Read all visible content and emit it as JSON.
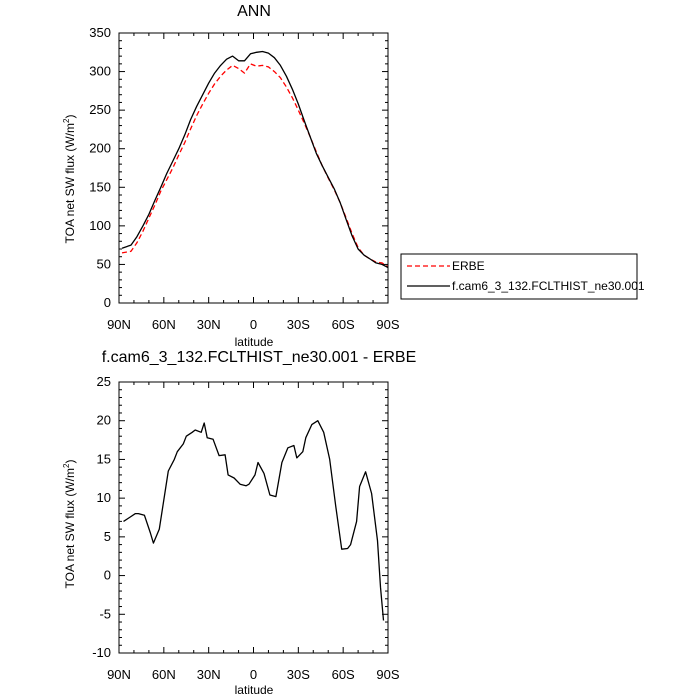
{
  "chart_data": [
    {
      "type": "line",
      "title": "ANN",
      "xlabel": "latitude",
      "ylabel": "TOA net SW flux (W/m",
      "ylabel_sup": "2",
      "ylabel_close": ")",
      "xlim": [
        90,
        -90
      ],
      "ylim": [
        0,
        350
      ],
      "xticks": [
        90,
        60,
        30,
        0,
        -30,
        -60,
        -90
      ],
      "xtick_labels": [
        "90N",
        "60N",
        "30N",
        "0",
        "30S",
        "60S",
        "90S"
      ],
      "yticks": [
        0,
        50,
        100,
        150,
        200,
        250,
        300,
        350
      ],
      "ytick_labels": [
        "0",
        "50",
        "100",
        "150",
        "200",
        "250",
        "300",
        "350"
      ],
      "series": [
        {
          "name": "ERBE",
          "color": "#ff0000",
          "dashed": true,
          "x": [
            88,
            82,
            78,
            74,
            70,
            66,
            62,
            58,
            54,
            50,
            46,
            42,
            38,
            34,
            30,
            26,
            22,
            18,
            14,
            10,
            6,
            2,
            -2,
            -6,
            -10,
            -14,
            -18,
            -22,
            -26,
            -30,
            -34,
            -38,
            -42,
            -46,
            -50,
            -54,
            -58,
            -62,
            -66,
            -70,
            -74,
            -78,
            -82,
            -86,
            -90
          ],
          "values": [
            65,
            67,
            78,
            93,
            110,
            127,
            145,
            160,
            175,
            192,
            208,
            226,
            243,
            258,
            272,
            284,
            294,
            302,
            308,
            304,
            298,
            310,
            307,
            308,
            306,
            300,
            292,
            280,
            266,
            250,
            233,
            215,
            196,
            178,
            162,
            147,
            130,
            110,
            90,
            72,
            62,
            57,
            53,
            52,
            47
          ]
        },
        {
          "name": "f.cam6_3_132.FCLTHIST_ne30.001",
          "color": "#000000",
          "dashed": false,
          "x": [
            88,
            82,
            78,
            74,
            70,
            66,
            62,
            58,
            54,
            50,
            46,
            42,
            38,
            34,
            30,
            26,
            22,
            18,
            14,
            10,
            6,
            2,
            -2,
            -6,
            -10,
            -14,
            -18,
            -22,
            -26,
            -30,
            -34,
            -38,
            -42,
            -46,
            -50,
            -54,
            -58,
            -62,
            -66,
            -70,
            -74,
            -78,
            -82,
            -86,
            -90
          ],
          "values": [
            71,
            75,
            86,
            100,
            115,
            133,
            150,
            168,
            184,
            200,
            218,
            238,
            255,
            270,
            285,
            298,
            308,
            316,
            320,
            314,
            314,
            323,
            325,
            326,
            324,
            318,
            308,
            294,
            277,
            258,
            236,
            215,
            194,
            178,
            163,
            148,
            130,
            108,
            87,
            70,
            62,
            57,
            52,
            50,
            46
          ]
        }
      ]
    },
    {
      "type": "line",
      "title": "f.cam6_3_132.FCLTHIST_ne30.001 - ERBE",
      "xlabel": "latitude",
      "ylabel": "TOA net SW flux (W/m",
      "ylabel_sup": "2",
      "ylabel_close": ")",
      "xlim": [
        90,
        -90
      ],
      "ylim": [
        -10,
        25
      ],
      "xticks": [
        90,
        60,
        30,
        0,
        -30,
        -60,
        -90
      ],
      "xtick_labels": [
        "90N",
        "60N",
        "30N",
        "0",
        "30S",
        "60S",
        "90S"
      ],
      "yticks": [
        -10,
        -5,
        0,
        5,
        10,
        15,
        20,
        25
      ],
      "ytick_labels": [
        "-10",
        "-5",
        "0",
        "5",
        "10",
        "15",
        "20",
        "25"
      ],
      "series": [
        {
          "color": "#000000",
          "dashed": false,
          "x": [
            87,
            83,
            79,
            77,
            73,
            69,
            67,
            63,
            59,
            57,
            53,
            51,
            47,
            45,
            41,
            39,
            35,
            33,
            31,
            27,
            23,
            19,
            17,
            13,
            9,
            5,
            3,
            -1,
            -3,
            -7,
            -11,
            -15,
            -19,
            -23,
            -27,
            -29,
            -33,
            -35,
            -39,
            -43,
            -47,
            -51,
            -55,
            -59,
            -63,
            -65,
            -69,
            -71,
            -75,
            -79,
            -83,
            -85,
            -87
          ],
          "values": [
            7.0,
            7.5,
            8.0,
            8.0,
            7.8,
            5.5,
            4.2,
            6.0,
            11.0,
            13.5,
            15.0,
            16.0,
            17.0,
            18.0,
            18.5,
            18.8,
            18.5,
            19.7,
            17.8,
            17.6,
            15.5,
            15.6,
            13.0,
            12.6,
            11.8,
            11.6,
            11.8,
            13.0,
            14.6,
            13.2,
            10.4,
            10.2,
            14.6,
            16.5,
            16.8,
            15.2,
            16.0,
            17.8,
            19.5,
            20.0,
            18.5,
            15.0,
            9.0,
            3.4,
            3.5,
            4.0,
            7.0,
            11.5,
            13.4,
            10.6,
            4.5,
            -1.5,
            -5.8
          ]
        }
      ]
    }
  ],
  "legend": {
    "items": [
      {
        "label": "ERBE",
        "color": "#ff0000",
        "dashed": true
      },
      {
        "label": "f.cam6_3_132.FCLTHIST_ne30.001",
        "color": "#000000",
        "dashed": false
      }
    ]
  }
}
